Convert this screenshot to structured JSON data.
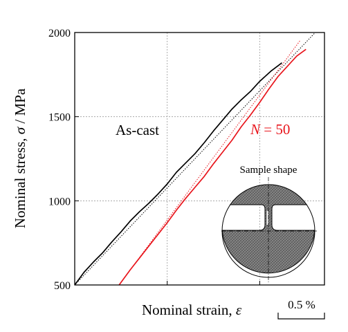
{
  "chart_data": {
    "type": "line",
    "title": "",
    "ylabel_prefix": "Nominal stress, ",
    "ylabel_symbol": "σ",
    "ylabel_suffix": " / MPa",
    "xlabel_prefix": "Nominal strain, ",
    "xlabel_symbol": "ε",
    "y_ticks": [
      "500",
      "1000",
      "1500",
      "2000"
    ],
    "ylim": [
      500,
      2000
    ],
    "xlim": [
      0,
      1.35
    ],
    "x_tick_labels_shown": false,
    "scale_bar_label": "0.5 %",
    "scale_bar_value": 0.5,
    "grid": true,
    "series": [
      {
        "name": "As-cast",
        "color": "#000000",
        "x": [
          0.0,
          0.05,
          0.1,
          0.15,
          0.2,
          0.25,
          0.3,
          0.35,
          0.4,
          0.45,
          0.5,
          0.55,
          0.6,
          0.65,
          0.7,
          0.75,
          0.8,
          0.85,
          0.9,
          0.95,
          1.0,
          1.06,
          1.12
        ],
        "y": [
          500,
          575,
          635,
          690,
          755,
          815,
          880,
          935,
          985,
          1040,
          1100,
          1170,
          1225,
          1280,
          1345,
          1415,
          1480,
          1545,
          1600,
          1650,
          1710,
          1770,
          1820
        ],
        "fit_line": {
          "x": [
            0.0,
            1.3
          ],
          "y": [
            500,
            2000
          ],
          "color": "#000000"
        }
      },
      {
        "name": "N = 50",
        "label_italic": "N",
        "label_rest": " = 50",
        "color": "#e8141b",
        "x": [
          0.24,
          0.3,
          0.35,
          0.4,
          0.45,
          0.5,
          0.55,
          0.6,
          0.65,
          0.7,
          0.75,
          0.8,
          0.85,
          0.9,
          0.95,
          1.0,
          1.05,
          1.1,
          1.15,
          1.2,
          1.25
        ],
        "y": [
          500,
          590,
          660,
          730,
          800,
          870,
          945,
          1015,
          1080,
          1145,
          1220,
          1290,
          1360,
          1440,
          1510,
          1585,
          1665,
          1740,
          1800,
          1860,
          1900
        ],
        "fit_line": {
          "x": [
            0.24,
            1.22
          ],
          "y": [
            500,
            1955
          ],
          "color": "#e8141b"
        }
      }
    ],
    "inset": {
      "title": "Sample shape"
    }
  }
}
